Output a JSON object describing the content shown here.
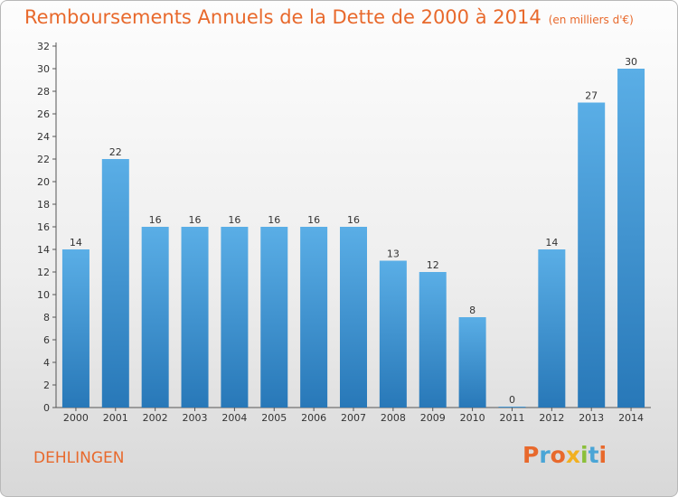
{
  "header": {
    "title": "Remboursements Annuels de la Dette de 2000 à 2014",
    "subtitle": "(en milliers d'€)"
  },
  "footer": {
    "commune": "DEHLINGEN",
    "logo": "Proxiti"
  },
  "colors": {
    "accent": "#e8692c",
    "bar_light": "#5aaee6",
    "bar_dark": "#2878b8",
    "logo": [
      "#e8692c",
      "#4aa5d6",
      "#e8692c",
      "#f2b020",
      "#8bbf3a",
      "#4aa5d6",
      "#e8692c"
    ]
  },
  "chart_data": {
    "type": "bar",
    "title": "Remboursements Annuels de la Dette de 2000 à 2014",
    "xlabel": "",
    "ylabel": "",
    "ylim": [
      0,
      32
    ],
    "yticks": [
      0,
      2,
      4,
      6,
      8,
      10,
      12,
      14,
      16,
      18,
      20,
      22,
      24,
      26,
      28,
      30,
      32
    ],
    "grid": false,
    "categories": [
      "2000",
      "2001",
      "2002",
      "2003",
      "2004",
      "2005",
      "2006",
      "2007",
      "2008",
      "2009",
      "2010",
      "2011",
      "2012",
      "2013",
      "2014"
    ],
    "values": [
      14,
      22,
      16,
      16,
      16,
      16,
      16,
      16,
      13,
      12,
      8,
      0,
      14,
      27,
      30
    ]
  }
}
